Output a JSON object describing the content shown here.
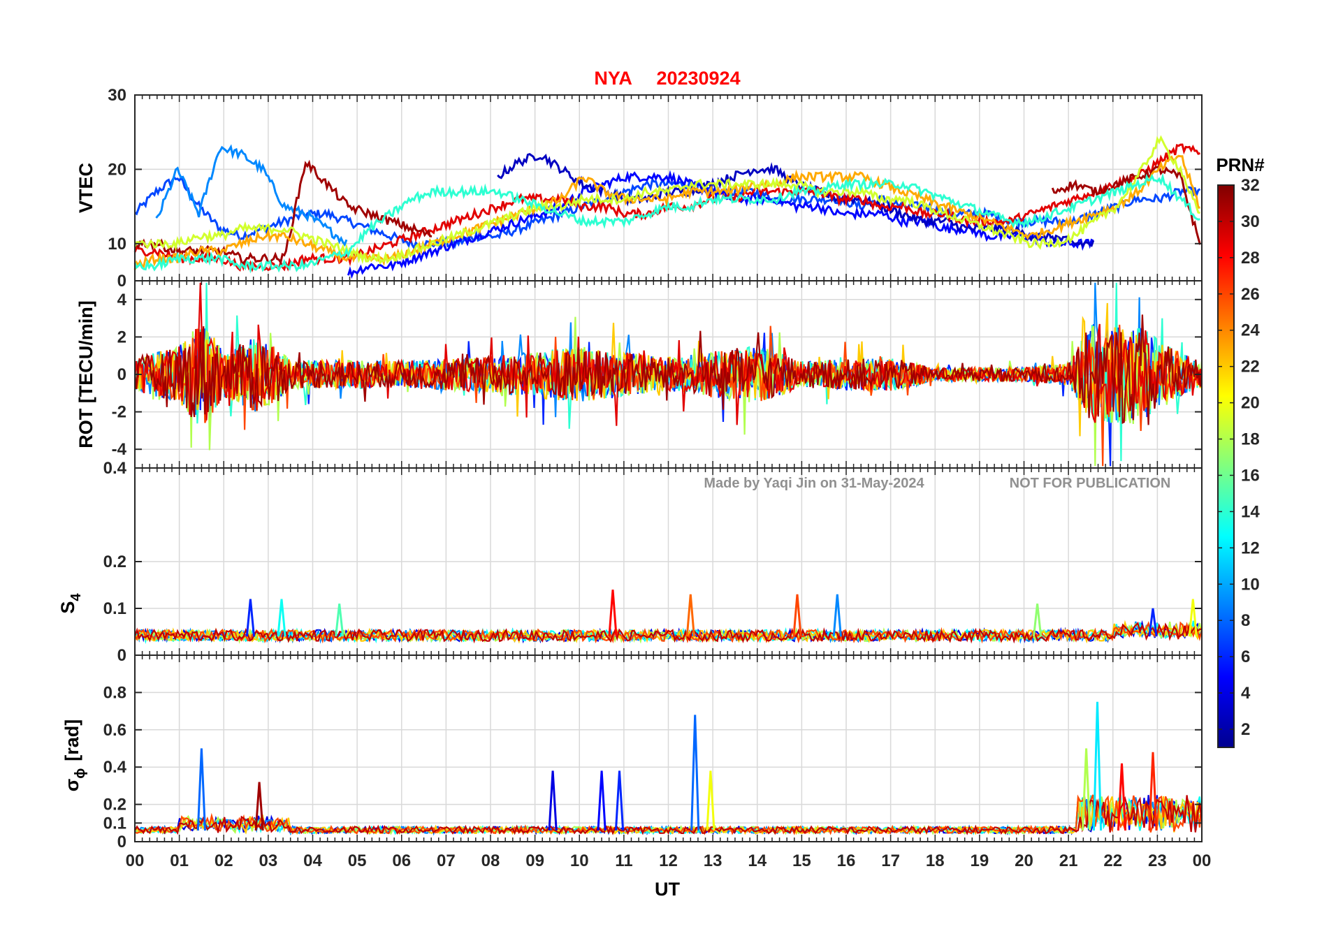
{
  "chart_data": {
    "type": "line",
    "title_station": "NYA",
    "title_date": "20230924",
    "xlabel": "UT",
    "x_ticks": [
      "00",
      "01",
      "02",
      "03",
      "04",
      "05",
      "06",
      "07",
      "08",
      "09",
      "10",
      "11",
      "12",
      "13",
      "14",
      "15",
      "16",
      "17",
      "18",
      "19",
      "20",
      "21",
      "22",
      "23",
      "00"
    ],
    "xlim_hours": [
      0,
      24
    ],
    "watermark_author": "Made by Yaqi Jin on 31-May-2024",
    "watermark_notice": "NOT FOR PUBLICATION",
    "colorbar": {
      "label": "PRN#",
      "range": [
        1,
        32
      ],
      "ticks": [
        "2",
        "4",
        "6",
        "8",
        "10",
        "12",
        "14",
        "16",
        "18",
        "20",
        "22",
        "24",
        "26",
        "28",
        "30",
        "32"
      ],
      "colormap": "jet"
    },
    "panels": [
      {
        "id": "vtec",
        "ylabel": "VTEC",
        "ylim": [
          5,
          30
        ],
        "yticks": [
          10,
          20,
          30
        ],
        "ytick_labels": [
          "10",
          "20",
          "30"
        ],
        "series": [
          {
            "prn": 7,
            "values": [
              14,
              17,
              19,
              15,
              12,
              11,
              12,
              13,
              14,
              14,
              13,
              12,
              11,
              10,
              10,
              10,
              11,
              11,
              12,
              13,
              14,
              15,
              16,
              17,
              18,
              18,
              18,
              17,
              17,
              17,
              16,
              16,
              16,
              16,
              15,
              16,
              15,
              15,
              14,
              14,
              14,
              13,
              13,
              13,
              13,
              14,
              15,
              16,
              16,
              17,
              17
            ]
          },
          {
            "prn": 9,
            "values": [
              null,
              13,
              20,
              14,
              23,
              22,
              20,
              15,
              14,
              12,
              10,
              null,
              null,
              null,
              null,
              null,
              null,
              null,
              null,
              null,
              null,
              null,
              null,
              null,
              null,
              null,
              null,
              null,
              null,
              null,
              null,
              null,
              null,
              null,
              null,
              null,
              null,
              null,
              null,
              null,
              null,
              null,
              null,
              null,
              null,
              null,
              null,
              null,
              null,
              null,
              null
            ]
          },
          {
            "prn": 5,
            "values": [
              null,
              null,
              null,
              null,
              null,
              null,
              null,
              null,
              null,
              null,
              6,
              7,
              7,
              8,
              9,
              10,
              11,
              12,
              13,
              14,
              15,
              17,
              18,
              19,
              19,
              19,
              18,
              17,
              16,
              16,
              16,
              15,
              15,
              14,
              14,
              14,
              13,
              13,
              12,
              12,
              11,
              11,
              11,
              10,
              10,
              10,
              null,
              null,
              null,
              null,
              null
            ]
          },
          {
            "prn": 3,
            "values": [
              null,
              null,
              null,
              null,
              null,
              null,
              null,
              null,
              null,
              null,
              null,
              null,
              null,
              null,
              null,
              null,
              null,
              19,
              21,
              22,
              20,
              18,
              17,
              16,
              16,
              17,
              17,
              18,
              19,
              20,
              20,
              18,
              17,
              16,
              16,
              15,
              14,
              13,
              13,
              12,
              12,
              12,
              11,
              11,
              10,
              10,
              null,
              null,
              null,
              null,
              null
            ]
          },
          {
            "prn": 29,
            "values": [
              9,
              9,
              8,
              8,
              8,
              7,
              7,
              7,
              8,
              8,
              8,
              9,
              10,
              11,
              12,
              13,
              14,
              15,
              16,
              16,
              16,
              15,
              15,
              14,
              14,
              15,
              15,
              16,
              16,
              17,
              17,
              17,
              17,
              16,
              16,
              15,
              15,
              14,
              14,
              13,
              13,
              13,
              14,
              15,
              16,
              17,
              18,
              19,
              21,
              23,
              22
            ]
          },
          {
            "prn": 31,
            "values": [
              10,
              10,
              9,
              9,
              9,
              8,
              8,
              8,
              21,
              18,
              15,
              14,
              13,
              12,
              11,
              null,
              null,
              null,
              null,
              null,
              null,
              null,
              null,
              null,
              null,
              null,
              null,
              null,
              null,
              null,
              null,
              null,
              null,
              null,
              null,
              null,
              null,
              null,
              null,
              null,
              null,
              null,
              null,
              17,
              18,
              17,
              18,
              19,
              20,
              19,
              9
            ]
          },
          {
            "prn": 23,
            "values": [
              7,
              8,
              8,
              9,
              9,
              10,
              11,
              11,
              10,
              9,
              8,
              8,
              8,
              9,
              10,
              11,
              12,
              13,
              14,
              15,
              16,
              19,
              17,
              16,
              16,
              16,
              17,
              17,
              17,
              18,
              18,
              19,
              19,
              19,
              19,
              18,
              17,
              16,
              15,
              14,
              13,
              12,
              11,
              12,
              13,
              14,
              15,
              17,
              20,
              22,
              14
            ]
          },
          {
            "prn": 19,
            "values": [
              10,
              10,
              10,
              11,
              11,
              12,
              12,
              12,
              11,
              10,
              9,
              8,
              8,
              9,
              10,
              11,
              12,
              13,
              14,
              15,
              15,
              16,
              16,
              16,
              17,
              17,
              18,
              18,
              18,
              18,
              18,
              18,
              17,
              17,
              17,
              16,
              16,
              15,
              14,
              13,
              12,
              11,
              10,
              10,
              11,
              13,
              15,
              19,
              24,
              20,
              13
            ]
          },
          {
            "prn": 14,
            "values": [
              7,
              7,
              8,
              8,
              8,
              7,
              7,
              7,
              7,
              8,
              9,
              12,
              14,
              16,
              17,
              17,
              17,
              17,
              16,
              15,
              14,
              13,
              13,
              13,
              14,
              15,
              15,
              16,
              16,
              16,
              16,
              17,
              17,
              18,
              18,
              18,
              18,
              17,
              16,
              15,
              14,
              13,
              13,
              14,
              15,
              16,
              17,
              18,
              19,
              16,
              13
            ]
          }
        ]
      },
      {
        "id": "rot",
        "ylabel": "ROT [TECU/min]",
        "ylim": [
          -5,
          5
        ],
        "yticks": [
          -4,
          -2,
          0,
          2,
          4
        ],
        "ytick_labels": [
          "-4",
          "-2",
          "0",
          "2",
          "4"
        ],
        "extra_tick_labels": [
          "0",
          "0.4"
        ],
        "envelope": [
          {
            "hour": 0,
            "amp": 1.5
          },
          {
            "hour": 1,
            "amp": 2.5
          },
          {
            "hour": 1.5,
            "amp": 5.0
          },
          {
            "hour": 2,
            "amp": 2.0
          },
          {
            "hour": 2.8,
            "amp": 3.5
          },
          {
            "hour": 3.5,
            "amp": 1.3
          },
          {
            "hour": 6,
            "amp": 1.2
          },
          {
            "hour": 8,
            "amp": 1.6
          },
          {
            "hour": 10,
            "amp": 2.5
          },
          {
            "hour": 12,
            "amp": 1.5
          },
          {
            "hour": 14,
            "amp": 2.6
          },
          {
            "hour": 15,
            "amp": 1.2
          },
          {
            "hour": 17,
            "amp": 1.5
          },
          {
            "hour": 18,
            "amp": 0.6
          },
          {
            "hour": 20,
            "amp": 0.6
          },
          {
            "hour": 21,
            "amp": 1.0
          },
          {
            "hour": 21.5,
            "amp": 4.5
          },
          {
            "hour": 22.5,
            "amp": 4.5
          },
          {
            "hour": 23.5,
            "amp": 2.0
          },
          {
            "hour": 24,
            "amp": 1.2
          }
        ]
      },
      {
        "id": "s4",
        "ylabel": "S4",
        "ylim": [
          0,
          0.4
        ],
        "yticks": [
          0,
          0.1,
          0.2
        ],
        "ytick_labels": [
          "0",
          "0.1",
          "0.2"
        ],
        "baseline": 0.04,
        "peaks": [
          {
            "hour": 2.6,
            "value": 0.12,
            "prn": 6
          },
          {
            "hour": 3.3,
            "value": 0.12,
            "prn": 13
          },
          {
            "hour": 4.6,
            "value": 0.11,
            "prn": 15
          },
          {
            "hour": 10.75,
            "value": 0.14,
            "prn": 28
          },
          {
            "hour": 12.5,
            "value": 0.13,
            "prn": 25
          },
          {
            "hour": 14.9,
            "value": 0.13,
            "prn": 26
          },
          {
            "hour": 15.8,
            "value": 0.13,
            "prn": 9
          },
          {
            "hour": 20.3,
            "value": 0.11,
            "prn": 17
          },
          {
            "hour": 22.9,
            "value": 0.1,
            "prn": 6
          },
          {
            "hour": 23.8,
            "value": 0.12,
            "prn": 20
          }
        ]
      },
      {
        "id": "sigma_phi",
        "ylabel_main": "σ",
        "ylabel_sub": "ϕ",
        "ylabel_unit": "[rad]",
        "ylim": [
          0,
          1.0
        ],
        "yticks": [
          0,
          0.1,
          0.2,
          0.4,
          0.6,
          0.8
        ],
        "ytick_labels": [
          "0",
          "0.1",
          "0.2",
          "0.4",
          "0.6",
          "0.8"
        ],
        "baseline": 0.06,
        "peaks": [
          {
            "hour": 1.5,
            "value": 0.5,
            "prn": 8
          },
          {
            "hour": 2.8,
            "value": 0.32,
            "prn": 31
          },
          {
            "hour": 9.4,
            "value": 0.38,
            "prn": 4
          },
          {
            "hour": 10.5,
            "value": 0.38,
            "prn": 5
          },
          {
            "hour": 10.9,
            "value": 0.38,
            "prn": 6
          },
          {
            "hour": 12.6,
            "value": 0.68,
            "prn": 8
          },
          {
            "hour": 12.95,
            "value": 0.38,
            "prn": 20
          },
          {
            "hour": 21.4,
            "value": 0.5,
            "prn": 18
          },
          {
            "hour": 21.65,
            "value": 0.75,
            "prn": 12
          },
          {
            "hour": 22.2,
            "value": 0.42,
            "prn": 28
          },
          {
            "hour": 22.9,
            "value": 0.48,
            "prn": 27
          }
        ]
      }
    ]
  }
}
